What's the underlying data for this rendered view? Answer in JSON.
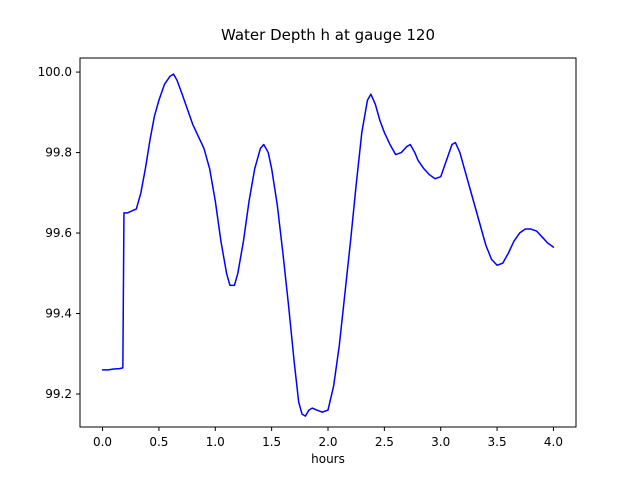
{
  "chart_data": {
    "type": "line",
    "title": "Water Depth h at gauge 120",
    "xlabel": "hours",
    "ylabel": "",
    "line_color": "#0000ff",
    "axis_color": "#000000",
    "background_color": "#ffffff",
    "grid": false,
    "legend": null,
    "xlim": [
      -0.2,
      4.2
    ],
    "ylim": [
      99.118,
      100.035
    ],
    "xticks": [
      0.0,
      0.5,
      1.0,
      1.5,
      2.0,
      2.5,
      3.0,
      3.5,
      4.0
    ],
    "yticks": [
      99.2,
      99.4,
      99.6,
      99.8,
      100.0
    ],
    "x": [
      0.0,
      0.05,
      0.1,
      0.15,
      0.18,
      0.19,
      0.22,
      0.26,
      0.3,
      0.34,
      0.38,
      0.42,
      0.46,
      0.5,
      0.55,
      0.6,
      0.63,
      0.66,
      0.7,
      0.75,
      0.8,
      0.85,
      0.9,
      0.95,
      1.0,
      1.05,
      1.1,
      1.13,
      1.17,
      1.2,
      1.25,
      1.3,
      1.35,
      1.4,
      1.43,
      1.47,
      1.5,
      1.55,
      1.6,
      1.65,
      1.7,
      1.74,
      1.77,
      1.8,
      1.83,
      1.86,
      1.9,
      1.95,
      2.0,
      2.05,
      2.1,
      2.15,
      2.2,
      2.25,
      2.3,
      2.35,
      2.38,
      2.42,
      2.46,
      2.5,
      2.55,
      2.6,
      2.65,
      2.7,
      2.73,
      2.77,
      2.8,
      2.85,
      2.9,
      2.95,
      3.0,
      3.05,
      3.1,
      3.13,
      3.17,
      3.2,
      3.25,
      3.3,
      3.35,
      3.4,
      3.45,
      3.5,
      3.55,
      3.6,
      3.65,
      3.7,
      3.75,
      3.8,
      3.85,
      3.9,
      3.95,
      4.0
    ],
    "y": [
      99.26,
      99.26,
      99.262,
      99.263,
      99.265,
      99.65,
      99.65,
      99.655,
      99.66,
      99.7,
      99.76,
      99.83,
      99.89,
      99.93,
      99.97,
      99.99,
      99.995,
      99.98,
      99.95,
      99.91,
      99.87,
      99.84,
      99.81,
      99.76,
      99.68,
      99.58,
      99.5,
      99.47,
      99.47,
      99.5,
      99.58,
      99.68,
      99.76,
      99.81,
      99.82,
      99.8,
      99.76,
      99.67,
      99.55,
      99.42,
      99.28,
      99.18,
      99.15,
      99.145,
      99.16,
      99.165,
      99.16,
      99.155,
      99.16,
      99.22,
      99.32,
      99.45,
      99.58,
      99.72,
      99.85,
      99.93,
      99.945,
      99.92,
      99.88,
      99.85,
      99.82,
      99.795,
      99.8,
      99.815,
      99.82,
      99.8,
      99.78,
      99.76,
      99.745,
      99.735,
      99.74,
      99.78,
      99.82,
      99.825,
      99.8,
      99.77,
      99.72,
      99.67,
      99.62,
      99.57,
      99.535,
      99.52,
      99.525,
      99.55,
      99.58,
      99.6,
      99.61,
      99.61,
      99.605,
      99.59,
      99.575,
      99.565
    ]
  }
}
